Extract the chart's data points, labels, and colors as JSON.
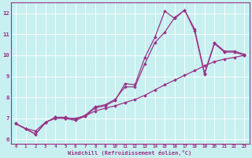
{
  "xlabel": "Windchill (Refroidissement éolien,°C)",
  "background_color": "#c8f0f0",
  "line_color": "#993388",
  "xlim": [
    -0.5,
    23.5
  ],
  "ylim": [
    5.8,
    12.5
  ],
  "xticks": [
    0,
    1,
    2,
    3,
    4,
    5,
    6,
    7,
    8,
    9,
    10,
    11,
    12,
    13,
    14,
    15,
    16,
    17,
    18,
    19,
    20,
    21,
    22,
    23
  ],
  "yticks": [
    6,
    7,
    8,
    9,
    10,
    11,
    12
  ],
  "series1_x": [
    0,
    1,
    2,
    3,
    4,
    5,
    6,
    7,
    8,
    9,
    10,
    11,
    12,
    13,
    14,
    15,
    16,
    17,
    18,
    19,
    20,
    21,
    22,
    23
  ],
  "series1_y": [
    6.75,
    6.5,
    6.25,
    6.8,
    7.05,
    7.0,
    6.9,
    7.1,
    7.5,
    7.6,
    7.85,
    8.65,
    8.6,
    9.9,
    10.85,
    12.1,
    11.75,
    12.15,
    11.25,
    9.15,
    10.6,
    10.2,
    10.2,
    10.05
  ],
  "series2_x": [
    0,
    1,
    2,
    3,
    4,
    5,
    6,
    7,
    8,
    9,
    10,
    11,
    12,
    13,
    14,
    15,
    16,
    17,
    18,
    19,
    20,
    21,
    22,
    23
  ],
  "series2_y": [
    6.75,
    6.5,
    6.25,
    6.8,
    7.05,
    7.05,
    6.95,
    7.15,
    7.55,
    7.65,
    7.9,
    8.5,
    8.5,
    9.6,
    10.6,
    11.1,
    11.8,
    12.15,
    11.15,
    9.1,
    10.55,
    10.15,
    10.15,
    10.0
  ],
  "series3_x": [
    0,
    1,
    2,
    3,
    4,
    5,
    6,
    7,
    8,
    9,
    10,
    11,
    12,
    13,
    14,
    15,
    16,
    17,
    18,
    19,
    20,
    21,
    22,
    23
  ],
  "series3_y": [
    6.75,
    6.52,
    6.4,
    6.82,
    7.0,
    7.0,
    7.0,
    7.12,
    7.35,
    7.48,
    7.6,
    7.75,
    7.9,
    8.1,
    8.35,
    8.6,
    8.82,
    9.05,
    9.27,
    9.5,
    9.7,
    9.82,
    9.9,
    10.0
  ]
}
